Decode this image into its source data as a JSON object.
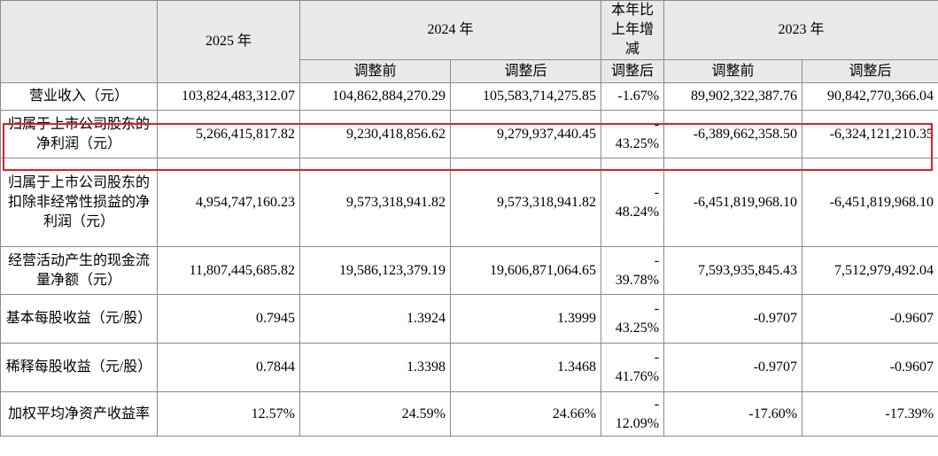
{
  "header": {
    "col_2025": "2025 年",
    "col_2024": "2024 年",
    "col_change": "本年比上年增减",
    "col_2023": "2023 年",
    "sub_before_2024": "调整前",
    "sub_after_2024": "调整后",
    "sub_change": "调整后",
    "sub_before_2023": "调整前",
    "sub_after_2023": "调整后"
  },
  "rows": [
    {
      "label": "营业收入（元）",
      "v2025": "103,824,483,312.07",
      "v2024_before": "104,862,884,270.29",
      "v2024_after": "105,583,714,275.85",
      "change_dash": "",
      "change": "-1.67%",
      "v2023_before": "89,902,322,387.76",
      "v2023_after": "90,842,770,366.04"
    },
    {
      "label": "归属于上市公司股东的净利润（元）",
      "v2025": "5,266,415,817.82",
      "v2024_before": "9,230,418,856.62",
      "v2024_after": "9,279,937,440.45",
      "change_dash": "-",
      "change": "43.25%",
      "v2023_before": "-6,389,662,358.50",
      "v2023_after": "-6,324,121,210.35"
    },
    {
      "label": "归属于上市公司股东的扣除非经常性损益的净利润（元）",
      "v2025": "4,954,747,160.23",
      "v2024_before": "9,573,318,941.82",
      "v2024_after": "9,573,318,941.82",
      "change_dash": "-",
      "change": "48.24%",
      "v2023_before": "-6,451,819,968.10",
      "v2023_after": "-6,451,819,968.10"
    },
    {
      "label": "经营活动产生的现金流量净额（元）",
      "v2025": "11,807,445,685.82",
      "v2024_before": "19,586,123,379.19",
      "v2024_after": "19,606,871,064.65",
      "change_dash": "-",
      "change": "39.78%",
      "v2023_before": "7,593,935,845.43",
      "v2023_after": "7,512,979,492.04"
    },
    {
      "label": "基本每股收益（元/股）",
      "v2025": "0.7945",
      "v2024_before": "1.3924",
      "v2024_after": "1.3999",
      "change_dash": "-",
      "change": "43.25%",
      "v2023_before": "-0.9707",
      "v2023_after": "-0.9607"
    },
    {
      "label": "稀释每股收益（元/股）",
      "v2025": "0.7844",
      "v2024_before": "1.3398",
      "v2024_after": "1.3468",
      "change_dash": "-",
      "change": "41.76%",
      "v2023_before": "-0.9707",
      "v2023_after": "-0.9607"
    },
    {
      "label": "加权平均净资产收益率",
      "v2025": "12.57%",
      "v2024_before": "24.59%",
      "v2024_after": "24.66%",
      "change_dash": "-",
      "change": "12.09%",
      "v2023_before": "-17.60%",
      "v2023_after": "-17.39%"
    }
  ],
  "highlight": {
    "color": "#e02020",
    "row_index": 1
  }
}
